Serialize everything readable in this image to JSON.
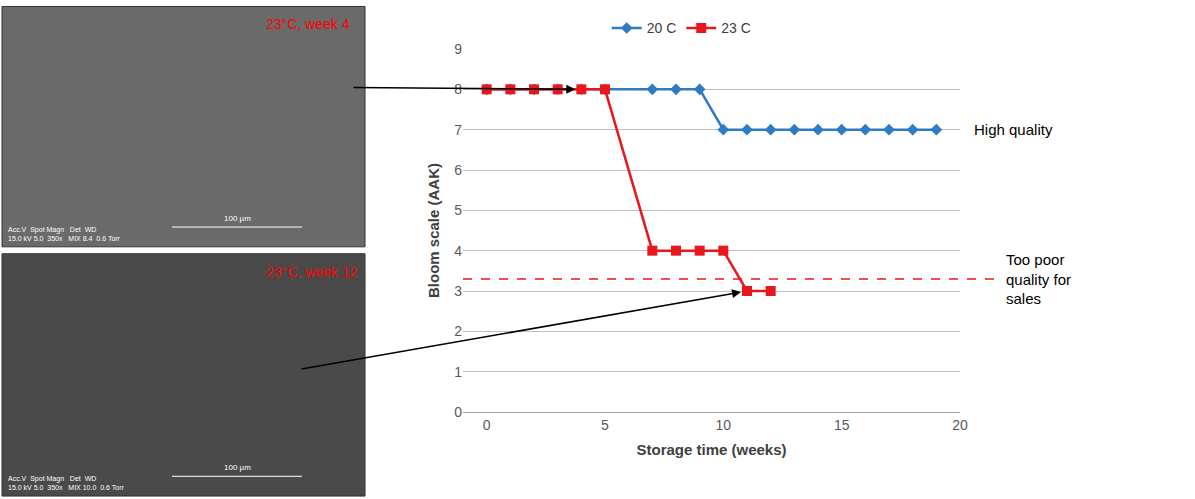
{
  "chart_data": {
    "type": "line",
    "x_label": "Storage time (weeks)",
    "y_label": "Bloom scale (AAK)",
    "xlim": [
      -1,
      20
    ],
    "xticks": [
      0,
      5,
      10,
      15,
      20
    ],
    "ylim": [
      0,
      9
    ],
    "yticks": [
      0,
      1,
      2,
      3,
      4,
      5,
      6,
      7,
      8,
      9
    ],
    "grid": true,
    "legend": "top",
    "series": [
      {
        "name": "20 C",
        "color": "#2e7cc4",
        "marker": "diamond",
        "x": [
          0,
          1,
          2,
          3,
          4,
          5,
          7,
          8,
          9,
          10,
          11,
          12,
          13,
          14,
          15,
          16,
          17,
          18,
          19
        ],
        "values": [
          8,
          8,
          8,
          8,
          8,
          8,
          8,
          8,
          8,
          7,
          7,
          7,
          7,
          7,
          7,
          7,
          7,
          7,
          7
        ]
      },
      {
        "name": "23 C",
        "color": "#e8171d",
        "marker": "square",
        "x": [
          0,
          1,
          2,
          3,
          4,
          5,
          7,
          8,
          9,
          10,
          11,
          12
        ],
        "values": [
          8,
          8,
          8,
          8,
          8,
          8,
          4,
          4,
          4,
          4,
          3,
          3
        ]
      }
    ],
    "reference_line": {
      "value": 3.3,
      "color": "#e8171d",
      "line_style": "dash"
    },
    "annotations": [
      {
        "text": "High quality",
        "y": 7
      },
      {
        "text": "Too poor quality for sales",
        "y": 3.3
      }
    ],
    "images": [
      {
        "label": "23°C, week 4",
        "label_color": "#ff0000",
        "scale_bar": "100 µm",
        "info": [
          "Acc.V  Spot Magn   Det  WD",
          "15.0 kV 5.0  350x   MIX 8.4  0.6 Torr"
        ],
        "points_to": {
          "x": 4,
          "y": 8
        }
      },
      {
        "label": "23°C, week 12",
        "label_color": "#ff0000",
        "scale_bar": "100 µm",
        "info": [
          "Acc.V  Spot Magn   Det  WD",
          "15.0 kV 5.0  350x   MIX 10.0  0.6 Torr"
        ],
        "points_to": {
          "x": 11,
          "y": 3
        }
      }
    ]
  }
}
